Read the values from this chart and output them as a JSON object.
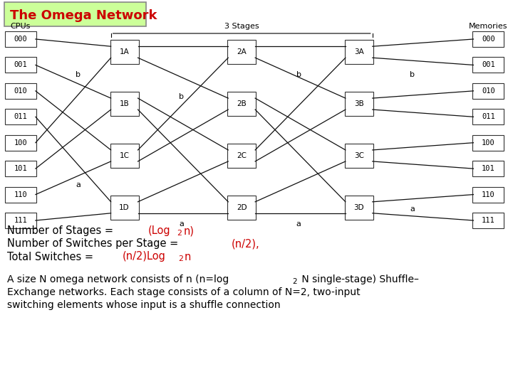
{
  "title": "The Omega Network",
  "title_color": "#cc0000",
  "title_bg": "#ccff99",
  "bg_color": "#ffffff",
  "cpu_labels": [
    "000",
    "001",
    "010",
    "011",
    "100",
    "101",
    "110",
    "111"
  ],
  "mem_labels": [
    "000",
    "001",
    "010",
    "011",
    "100",
    "101",
    "110",
    "111"
  ],
  "switch_labels": [
    [
      "1A",
      "1B",
      "1C",
      "1D"
    ],
    [
      "2A",
      "2B",
      "2C",
      "2D"
    ],
    [
      "3A",
      "3B",
      "3C",
      "3D"
    ]
  ],
  "stage_label": "3 Stages",
  "cpus_label": "CPUs",
  "memories_label": "Memories",
  "text_lines": [
    {
      "parts": [
        {
          "text": "Number of Stages = ",
          "color": "#000000"
        },
        {
          "text": "(Log",
          "color": "#cc0000"
        },
        {
          "text": "2",
          "color": "#cc0000",
          "sub": true
        },
        {
          "text": "n)",
          "color": "#cc0000"
        }
      ]
    },
    {
      "parts": [
        {
          "text": "Number of Switches per Stage = ",
          "color": "#000000"
        },
        {
          "text": "(n/2),",
          "color": "#cc0000"
        }
      ]
    },
    {
      "parts": [
        {
          "text": "Total Switches = ",
          "color": "#000000"
        },
        {
          "text": "(n/2)Log",
          "color": "#cc0000"
        },
        {
          "text": "2",
          "color": "#cc0000",
          "sub": true
        },
        {
          "text": "n",
          "color": "#cc0000"
        }
      ]
    }
  ],
  "desc_lines": [
    {
      "parts": [
        {
          "text": "A size N omega network consists of n (n=log",
          "color": "#000000"
        },
        {
          "text": "2",
          "color": "#000000",
          "sub": true
        },
        {
          "text": " N single-stage) Shuffle–",
          "color": "#000000"
        }
      ]
    },
    {
      "parts": [
        {
          "text": "Exchange networks. Each stage consists of a column of N=2, two-input",
          "color": "#000000"
        }
      ]
    },
    {
      "parts": [
        {
          "text": "switching elements whose input is a shuffle connection",
          "color": "#000000"
        }
      ]
    }
  ]
}
